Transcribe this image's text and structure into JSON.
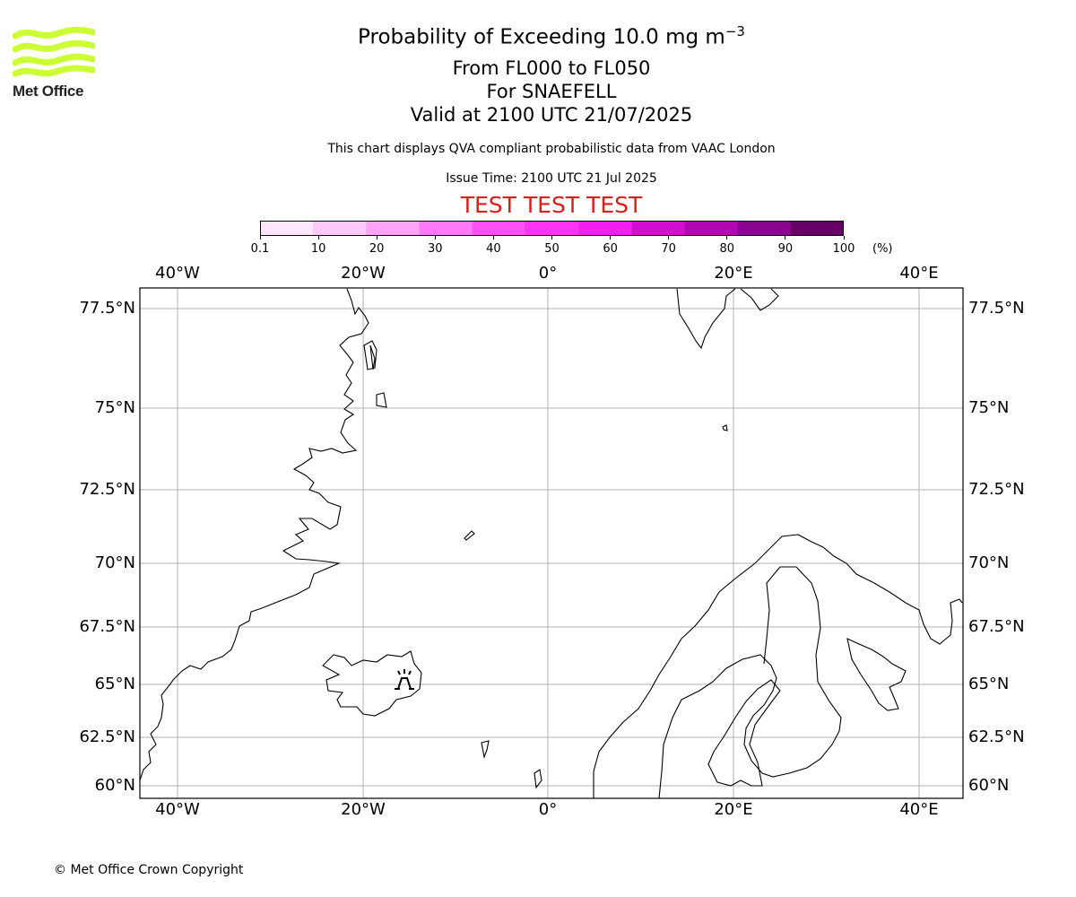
{
  "header": {
    "title_main": "Probability of Exceeding 10.0 mg m",
    "title_exponent": "−3",
    "title_levels": "From FL000 to FL050",
    "title_volcano": "For SNAEFELL",
    "title_valid": "Valid at 2100 UTC 21/07/2025",
    "note": "This chart displays QVA compliant probabilistic data from VAAC London",
    "issue_time": "Issue Time: 2100 UTC 21 Jul 2025",
    "test_banner": "TEST TEST TEST",
    "test_color": "#e31a1c"
  },
  "logo": {
    "text": "Met Office",
    "icon": "met-office-wave-logo",
    "color": "#ccff33"
  },
  "colorbar": {
    "labels": [
      "0.1",
      "10",
      "20",
      "30",
      "40",
      "50",
      "60",
      "70",
      "80",
      "90",
      "100"
    ],
    "unit": "(%)",
    "colors": [
      "#ffe6fd",
      "#ffc8fb",
      "#ffa3f8",
      "#ff78f7",
      "#ff50f5",
      "#ff33f3",
      "#f21ff0",
      "#d20fd0",
      "#b208b3",
      "#8c0491",
      "#680266"
    ]
  },
  "map": {
    "lon_labels": [
      "40°W",
      "20°W",
      "0°",
      "20°E",
      "40°E"
    ],
    "lat_labels": [
      "77.5°N",
      "75°N",
      "72.5°N",
      "70°N",
      "67.5°N",
      "65°N",
      "62.5°N",
      "60°N"
    ],
    "volcano_icon": "volcano-icon",
    "grid": true
  },
  "footer": {
    "copyright": "© Met Office Crown Copyright"
  }
}
